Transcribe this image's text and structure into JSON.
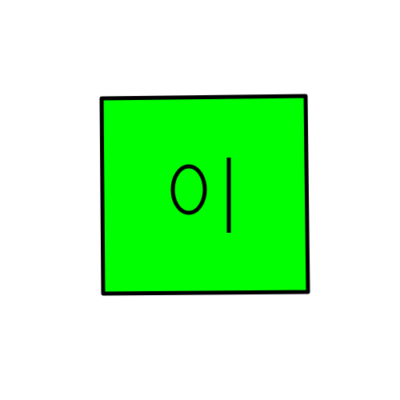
{
  "colors": {
    "background": "#ffffff",
    "button_fill": "#00ff00",
    "button_stroke": "#000000",
    "glyph": "#000000"
  },
  "power_button": {
    "off_label": "0",
    "on_label": "|",
    "icon": "power-toggle-icon"
  }
}
